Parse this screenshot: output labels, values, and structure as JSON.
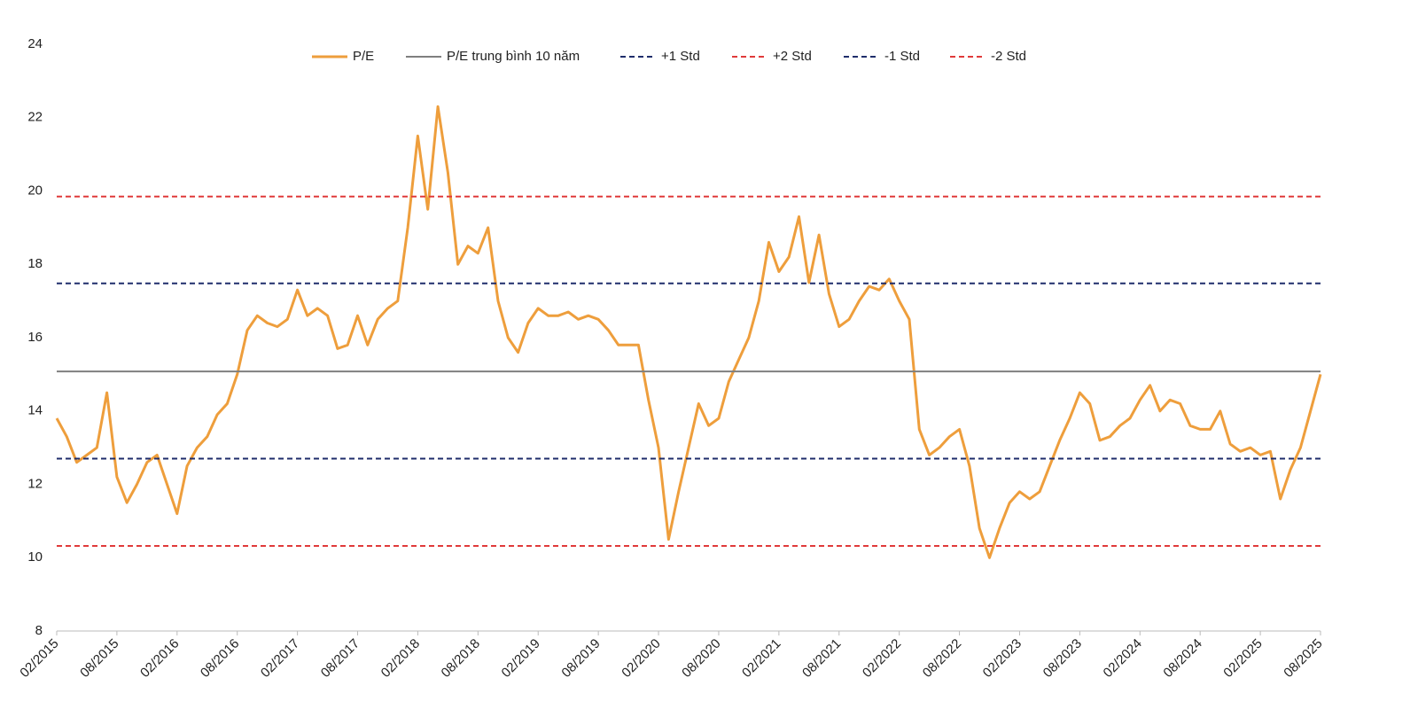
{
  "chart_data": {
    "type": "line",
    "categories": [
      "02/2015",
      null,
      null,
      null,
      null,
      null,
      "08/2015",
      null,
      null,
      null,
      null,
      null,
      "02/2016",
      null,
      null,
      null,
      null,
      null,
      "08/2016",
      null,
      null,
      null,
      null,
      null,
      "02/2017",
      null,
      null,
      null,
      null,
      null,
      "08/2017",
      null,
      null,
      null,
      null,
      null,
      "02/2018",
      null,
      null,
      null,
      null,
      null,
      "08/2018",
      null,
      null,
      null,
      null,
      null,
      "02/2019",
      null,
      null,
      null,
      null,
      null,
      "08/2019",
      null,
      null,
      null,
      null,
      null,
      "02/2020",
      null,
      null,
      null,
      null,
      null,
      "08/2020",
      null,
      null,
      null,
      null,
      null,
      "02/2021",
      null,
      null,
      null,
      null,
      null,
      "08/2021",
      null,
      null,
      null,
      null,
      null,
      "02/2022",
      null,
      null,
      null,
      null,
      null,
      "08/2022",
      null,
      null,
      null,
      null,
      null,
      "02/2023",
      null,
      null,
      null,
      null,
      null,
      "08/2023",
      null,
      null,
      null,
      null,
      null,
      "02/2024",
      null,
      null,
      null,
      null,
      null,
      "08/2024",
      null,
      null,
      null,
      null,
      null,
      "02/2025",
      null,
      null,
      null,
      null,
      null,
      "08/2025"
    ],
    "series": [
      {
        "name": "P/E",
        "color": "#ee9e3c",
        "values": [
          13.8,
          13.3,
          12.6,
          12.8,
          13.0,
          14.5,
          12.2,
          11.5,
          12.0,
          12.6,
          12.8,
          12.0,
          11.2,
          12.5,
          13.0,
          13.3,
          13.9,
          14.2,
          15.0,
          16.2,
          16.6,
          16.4,
          16.3,
          16.5,
          17.3,
          16.6,
          16.8,
          16.6,
          15.7,
          15.8,
          16.6,
          15.8,
          16.5,
          16.8,
          17.0,
          19.0,
          21.5,
          19.5,
          22.3,
          20.5,
          18.0,
          18.5,
          18.3,
          19.0,
          17.0,
          16.0,
          15.6,
          16.4,
          16.8,
          16.6,
          16.6,
          16.7,
          16.5,
          16.6,
          16.5,
          16.2,
          15.8,
          15.8,
          15.8,
          14.3,
          13.0,
          10.5,
          11.8,
          13.0,
          14.2,
          13.6,
          13.8,
          14.8,
          15.4,
          16.0,
          17.0,
          18.6,
          17.8,
          18.2,
          19.3,
          17.5,
          18.8,
          17.2,
          16.3,
          16.5,
          17.0,
          17.4,
          17.3,
          17.6,
          17.0,
          16.5,
          13.5,
          12.8,
          13.0,
          13.3,
          13.5,
          12.5,
          10.8,
          10.0,
          10.8,
          11.5,
          11.8,
          11.6,
          11.8,
          12.5,
          13.2,
          13.8,
          14.5,
          14.2,
          13.2,
          13.3,
          13.6,
          13.8,
          14.3,
          14.7,
          14.0,
          14.3,
          14.2,
          13.6,
          13.5,
          13.5,
          14.0,
          13.1,
          12.9,
          13.0,
          12.8,
          12.9,
          11.6,
          12.4,
          13.0,
          14.0,
          15.0
        ]
      },
      {
        "name": "P/E trung bình 10 năm",
        "color": "#7f7f7f",
        "value": 15.08,
        "dashed": false
      },
      {
        "name": "+1 Std",
        "color": "#1f2d6b",
        "value": 17.48,
        "dashed": true
      },
      {
        "name": "+2 Std",
        "color": "#e03a3a",
        "value": 19.85,
        "dashed": true
      },
      {
        "name": "-1 Std",
        "color": "#1f2d6b",
        "value": 12.7,
        "dashed": true
      },
      {
        "name": "-2 Std",
        "color": "#e03a3a",
        "value": 10.32,
        "dashed": true
      }
    ],
    "ylim": [
      8,
      24
    ],
    "yticks": [
      8,
      10,
      12,
      14,
      16,
      18,
      20,
      22,
      24
    ],
    "grid": false,
    "legend": "top"
  }
}
